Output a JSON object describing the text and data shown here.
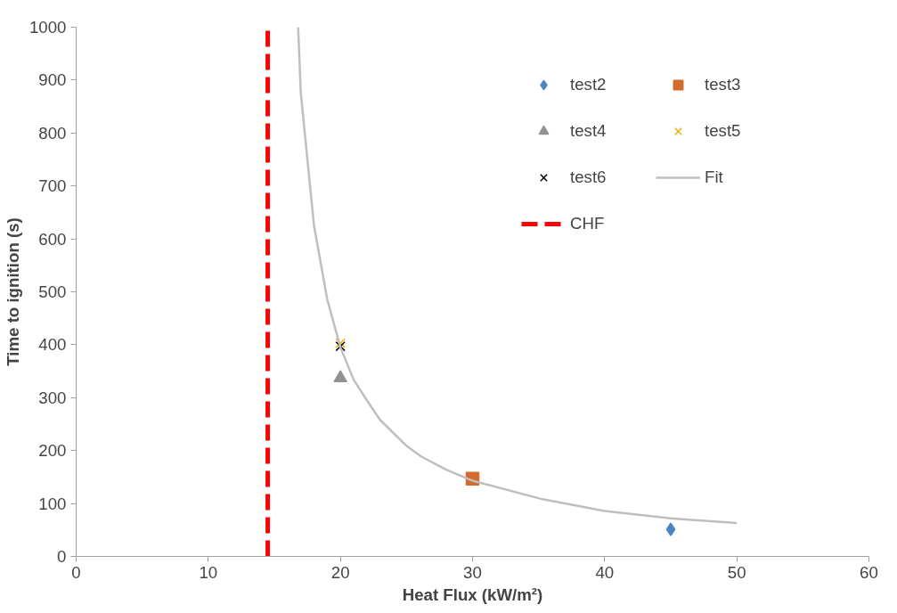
{
  "chart_data": {
    "type": "scatter",
    "xlabel": "Heat Flux (kW/m²)",
    "ylabel": "Time to ignition (s)",
    "xlim": [
      0,
      60
    ],
    "xticks": [
      0,
      10,
      20,
      30,
      40,
      50,
      60
    ],
    "ylim": [
      0,
      1000
    ],
    "yticks": [
      0,
      100,
      200,
      300,
      400,
      500,
      600,
      700,
      800,
      900,
      1000
    ],
    "grid": false,
    "legend": "right",
    "series": [
      {
        "name": "CHF",
        "type": "line",
        "color": "#ff0000",
        "line_style": "dashed",
        "marker": "none",
        "x": [
          14.5,
          14.5
        ],
        "values": [
          0,
          1000
        ]
      },
      {
        "name": "test2",
        "color": "#4a86c0",
        "marker": "diamond",
        "x": [
          45
        ],
        "values": [
          51
        ]
      },
      {
        "name": "test3",
        "color": "#d26b2c",
        "marker": "square",
        "x": [
          30
        ],
        "values": [
          147
        ]
      },
      {
        "name": "test4",
        "color": "#929292",
        "marker": "triangle",
        "x": [
          20
        ],
        "values": [
          337
        ]
      },
      {
        "name": "test5",
        "color": "#e8b000",
        "marker": "cross",
        "x": [
          20
        ],
        "values": [
          403
        ]
      },
      {
        "name": "test6",
        "color": "#000000",
        "marker": "cross",
        "x": [
          20
        ],
        "values": [
          397
        ]
      },
      {
        "name": "Fit",
        "type": "line",
        "color": "#bfbfbf",
        "marker": "none",
        "x": [
          16.8,
          17,
          18,
          19,
          20,
          21,
          22,
          23,
          25,
          26.1,
          28,
          30,
          35.3,
          40,
          45,
          50
        ],
        "values": [
          1000,
          876,
          625,
          486,
          395,
          334,
          295,
          258,
          209,
          189,
          164,
          143,
          108,
          86,
          72,
          63
        ]
      }
    ]
  }
}
